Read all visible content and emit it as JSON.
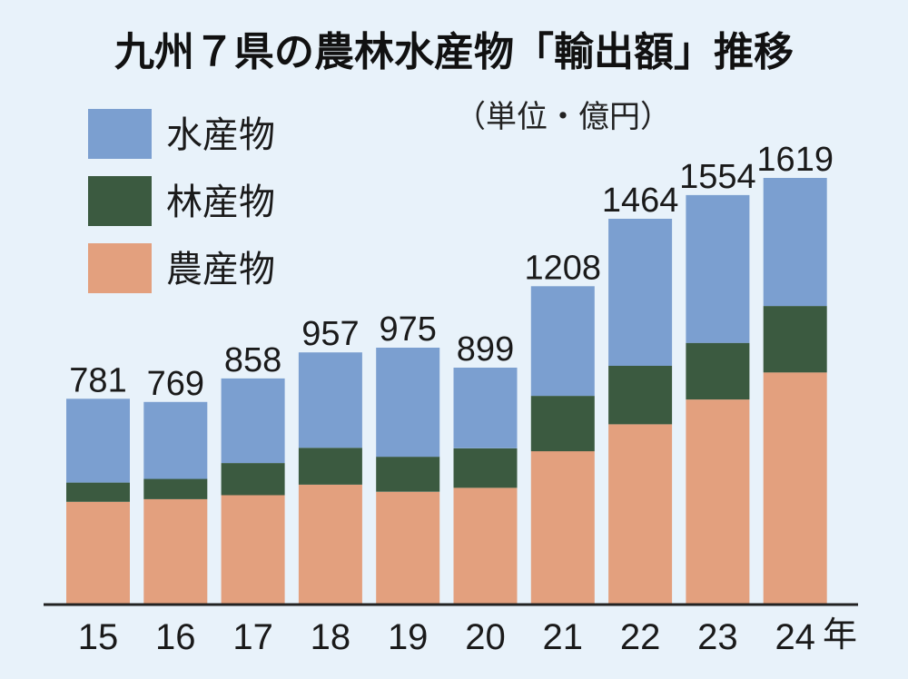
{
  "title": "九州７県の農林水産物「輸出額」推移",
  "unit": "（単位・億円）",
  "colors": {
    "background": "#e8f2fa",
    "aquatic": "#7b9fd0",
    "forestry": "#3b5a40",
    "agricultural": "#e3a07e",
    "axis": "#222222"
  },
  "chart_data": {
    "type": "bar",
    "stacked": true,
    "title": "九州７県の農林水産物「輸出額」推移",
    "subtitle": "（単位・億円）",
    "xlabel": "年",
    "ylabel": "",
    "categories": [
      "15",
      "16",
      "17",
      "18",
      "19",
      "20",
      "21",
      "22",
      "23",
      "24"
    ],
    "totals": [
      781,
      769,
      858,
      957,
      975,
      899,
      1208,
      1464,
      1554,
      1619
    ],
    "series": [
      {
        "name": "農産物",
        "color": "#e3a07e",
        "values": [
          390,
          400,
          415,
          455,
          428,
          443,
          582,
          684,
          778,
          881
        ]
      },
      {
        "name": "林産物",
        "color": "#3b5a40",
        "values": [
          73,
          77,
          122,
          140,
          133,
          150,
          210,
          222,
          215,
          252
        ]
      },
      {
        "name": "水産物",
        "color": "#7b9fd0",
        "values": [
          318,
          292,
          321,
          362,
          414,
          306,
          416,
          558,
          561,
          486
        ]
      }
    ],
    "ylim": [
      0,
      1619
    ],
    "grid": false,
    "legend": "top-left"
  }
}
